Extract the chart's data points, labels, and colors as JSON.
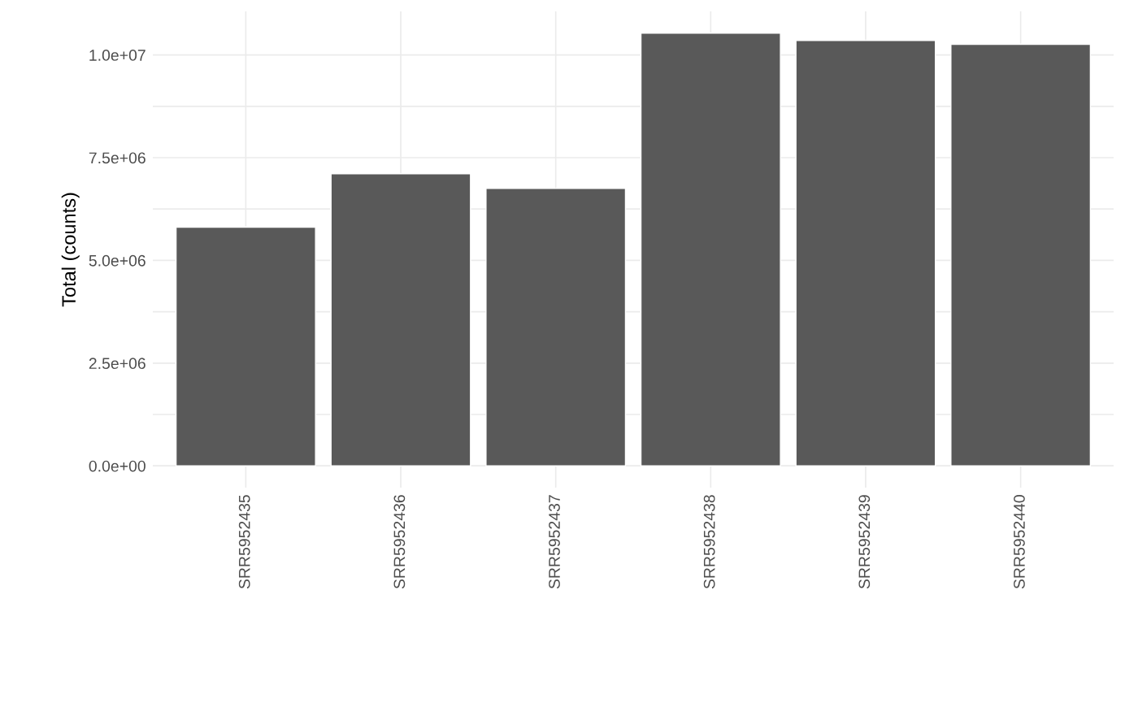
{
  "chart_data": {
    "type": "bar",
    "ylabel": "Total (counts)",
    "categories": [
      "SRR5952435",
      "SRR5952436",
      "SRR5952437",
      "SRR5952438",
      "SRR5952439",
      "SRR5952440"
    ],
    "values": [
      5810000,
      7110000,
      6750000,
      10530000,
      10350000,
      10260000
    ],
    "color": "#595959",
    "ylim": [
      -530000,
      11060000
    ],
    "yticks": [
      {
        "value": 0,
        "label": "0.0e+00"
      },
      {
        "value": 1250000,
        "label": null
      },
      {
        "value": 2500000,
        "label": "2.5e+06"
      },
      {
        "value": 3750000,
        "label": null
      },
      {
        "value": 5000000,
        "label": "5.0e+06"
      },
      {
        "value": 6250000,
        "label": null
      },
      {
        "value": 7500000,
        "label": "7.5e+06"
      },
      {
        "value": 8750000,
        "label": null
      },
      {
        "value": 10000000,
        "label": "1.0e+07"
      }
    ],
    "grid": true
  }
}
